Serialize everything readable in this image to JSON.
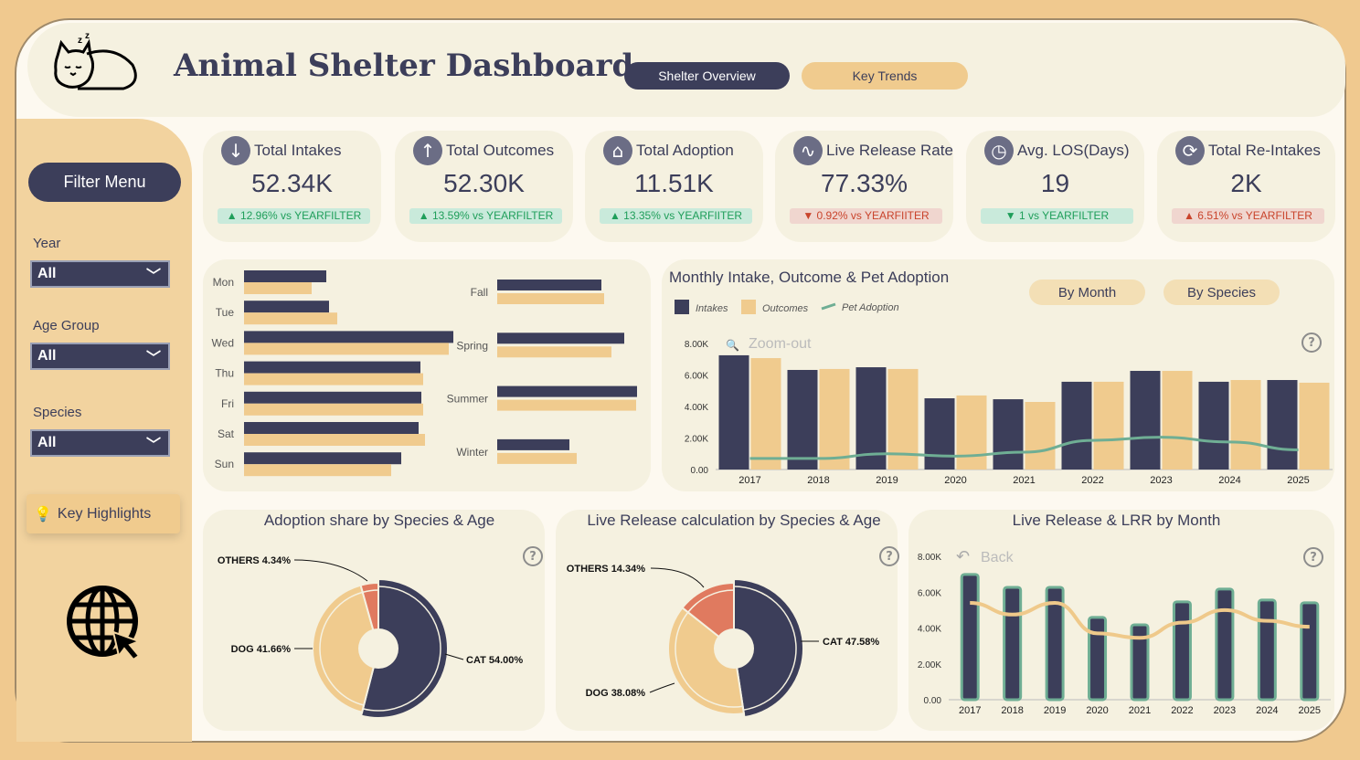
{
  "header": {
    "title": "Animal Shelter Dashboard",
    "nav": [
      {
        "label": "Shelter Overview",
        "active": true
      },
      {
        "label": "Key Trends",
        "active": false
      }
    ]
  },
  "sidebar": {
    "filter_menu": "Filter Menu",
    "filters": [
      {
        "label": "Year",
        "value": "All"
      },
      {
        "label": "Age Group",
        "value": "All"
      },
      {
        "label": "Species",
        "value": "All"
      }
    ],
    "key_highlights": "Key Highlights"
  },
  "kpis": [
    {
      "title": "Total Intakes",
      "value": "52.34K",
      "delta": "▲ 12.96% vs YEARFILTER",
      "trend": "up",
      "icon": "arrow-down-icon"
    },
    {
      "title": "Total Outcomes",
      "value": "52.30K",
      "delta": "▲ 13.59% vs YEARFILTER",
      "trend": "up",
      "icon": "arrow-up-icon"
    },
    {
      "title": "Total Adoption",
      "value": "11.51K",
      "delta": "▲ 13.35% vs YEARFIITER",
      "trend": "up",
      "icon": "home-icon"
    },
    {
      "title": "Live Release Rate",
      "value": "77.33%",
      "delta": "▼ 0.92% vs YEARFIITER",
      "trend": "down",
      "icon": "heartbeat-icon"
    },
    {
      "title": "Avg. LOS(Days)",
      "value": "19",
      "delta": "▼ 1 vs YEARFILTER",
      "trend": "up",
      "icon": "clock-icon"
    },
    {
      "title": "Total Re-Intakes",
      "value": "2K",
      "delta": "▲ 6.51% vs YEARFILTER",
      "trend": "down",
      "icon": "refresh-icon"
    }
  ],
  "colors": {
    "navy": "#3c3e5a",
    "tan": "#f0cb8e",
    "green": "#6fae94",
    "coral": "#e07a5f",
    "up": "#1f9e5a",
    "down": "#c9442c"
  },
  "chart_data": [
    {
      "type": "bar",
      "orientation": "horizontal",
      "categories": [
        "Mon",
        "Tue",
        "Wed",
        "Thu",
        "Fri",
        "Sat",
        "Sun"
      ],
      "series": [
        {
          "values": [
            90,
            93,
            229,
            193,
            194,
            191,
            172
          ]
        },
        {
          "values": [
            74,
            102,
            224,
            196,
            196,
            198,
            161
          ]
        }
      ]
    },
    {
      "type": "bar",
      "orientation": "horizontal",
      "categories": [
        "Fall",
        "Spring",
        "Summer",
        "Winter"
      ],
      "series": [
        {
          "values": [
            114,
            139,
            153,
            79
          ]
        },
        {
          "values": [
            117,
            125,
            152,
            87
          ]
        }
      ]
    },
    {
      "type": "bar",
      "title": "Monthly Intake, Outcome & Pet Adoption",
      "categories": [
        "2017",
        "2018",
        "2019",
        "2020",
        "2021",
        "2022",
        "2023",
        "2024",
        "2025"
      ],
      "yticks": [
        "0.00",
        "2.00K",
        "4.00K",
        "6.00K",
        "8.00K"
      ],
      "ylim": [
        0,
        8000
      ],
      "legend": "top-left",
      "zoom_label": "Zoom-out",
      "series": [
        {
          "name": "Intakes",
          "type": "bar",
          "values": [
            7250,
            6320,
            6490,
            4520,
            4460,
            5570,
            6260,
            5570,
            5680
          ]
        },
        {
          "name": "Outcomes",
          "type": "bar",
          "values": [
            7070,
            6380,
            6380,
            4700,
            4290,
            5570,
            6260,
            5680,
            5510
          ]
        },
        {
          "name": "Pet Adoption",
          "type": "line",
          "values": [
            700,
            700,
            1000,
            850,
            1100,
            1850,
            2050,
            1750,
            1250
          ]
        }
      ],
      "buttons": [
        "By Month",
        "By Species"
      ]
    },
    {
      "type": "pie",
      "title": "Adoption share by Species & Age",
      "slices": [
        {
          "label": "CAT",
          "value": 54.0,
          "text": "CAT 54.00%"
        },
        {
          "label": "DOG",
          "value": 41.66,
          "text": "DOG 41.66%"
        },
        {
          "label": "OTHERS",
          "value": 4.34,
          "text": "OTHERS 4.34%"
        }
      ]
    },
    {
      "type": "pie",
      "title": "Live Release calculation by Species & Age",
      "slices": [
        {
          "label": "CAT",
          "value": 47.58,
          "text": "CAT 47.58%"
        },
        {
          "label": "DOG",
          "value": 38.08,
          "text": "DOG 38.08%"
        },
        {
          "label": "OTHERS",
          "value": 14.34,
          "text": "OTHERS 14.34%"
        }
      ]
    },
    {
      "type": "bar",
      "title": "Live Release & LRR by Month",
      "categories": [
        "2017",
        "2018",
        "2019",
        "2020",
        "2021",
        "2022",
        "2023",
        "2024",
        "2025"
      ],
      "yticks": [
        "0.00",
        "2.00K",
        "4.00K",
        "6.00K",
        "8.00K"
      ],
      "ylim": [
        0,
        8000
      ],
      "back_label": "Back",
      "series": [
        {
          "type": "bar",
          "values": [
            6990,
            6270,
            6270,
            4590,
            4180,
            5460,
            6170,
            5560,
            5410
          ]
        },
        {
          "type": "line",
          "values": [
            5400,
            4750,
            5400,
            3700,
            3450,
            4300,
            5000,
            4400,
            4070
          ]
        }
      ]
    }
  ]
}
